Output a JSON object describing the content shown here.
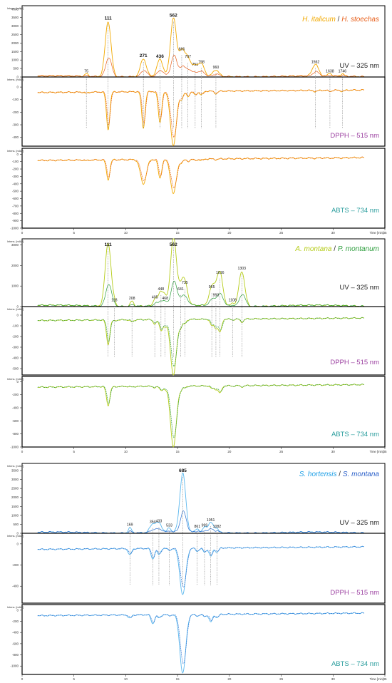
{
  "chart_data": [
    {
      "type": "line",
      "title_parts": [
        {
          "text": "H. italicum",
          "color": "#f2a900"
        },
        {
          "text": " / ",
          "color": "#333333"
        },
        {
          "text": "H. stoechas",
          "color": "#e8601c"
        }
      ],
      "series_colors": [
        "#f2a900",
        "#e8601c"
      ],
      "xlabel": "Time [min]",
      "xlim": [
        0,
        35
      ],
      "x_ticks": [
        "0",
        "5",
        "10",
        "15",
        "20",
        "25",
        "30",
        "35"
      ],
      "panels": [
        {
          "label": "UV – 325 nm",
          "label_color": "#222222",
          "unit": "Intens. [mAU]",
          "y_ticks": [
            "0",
            "500",
            "1000",
            "1500",
            "2000",
            "2500",
            "3000",
            "3500",
            "4000"
          ],
          "ylim": [
            0,
            4200
          ]
        },
        {
          "label": "DPPH – 515 nm",
          "label_color": "#9b3fa0",
          "unit": "Intens. [mAU]",
          "y_ticks": [
            "0",
            "-100",
            "-200",
            "-300",
            "-400"
          ],
          "ylim": [
            -470,
            80
          ]
        },
        {
          "label": "ABTS – 734 nm",
          "label_color": "#2a9d9d",
          "unit": "Intens. [mAU]",
          "y_ticks": [
            "0",
            "-100",
            "-200",
            "-300",
            "-400",
            "-500",
            "-600",
            "-700",
            "-800",
            "-900",
            "-1000"
          ],
          "ylim": [
            -1000,
            80
          ]
        }
      ],
      "peaks": [
        {
          "label": "75",
          "x": 6.2,
          "uv": 150,
          "dpph": -10,
          "abts": -10,
          "bold": false
        },
        {
          "label": "111",
          "x": 8.3,
          "uv": 3250,
          "dpph": -300,
          "abts": -270,
          "bold": true
        },
        {
          "label": "271",
          "x": 11.7,
          "uv": 1050,
          "dpph": -290,
          "abts": -330,
          "bold": true
        },
        {
          "label": "436",
          "x": 13.3,
          "uv": 1000,
          "dpph": -250,
          "abts": -260,
          "bold": true
        },
        {
          "label": "562",
          "x": 14.6,
          "uv": 3420,
          "dpph": -430,
          "abts": -460,
          "bold": true
        },
        {
          "label": "666",
          "x": 15.4,
          "uv": 1450,
          "dpph": -60,
          "abts": -40,
          "bold": false
        },
        {
          "label": "707",
          "x": 16.0,
          "uv": 1000,
          "dpph": -40,
          "abts": -30,
          "bold": false
        },
        {
          "label": "751",
          "x": 16.7,
          "uv": 550,
          "dpph": -30,
          "abts": -20,
          "bold": false
        },
        {
          "label": "798",
          "x": 17.3,
          "uv": 700,
          "dpph": -30,
          "abts": -20,
          "bold": false
        },
        {
          "label": "960",
          "x": 18.7,
          "uv": 380,
          "dpph": -20,
          "abts": -10,
          "bold": false
        },
        {
          "label": "1562",
          "x": 28.3,
          "uv": 700,
          "dpph": -10,
          "abts": -5,
          "bold": false
        },
        {
          "label": "1638",
          "x": 29.7,
          "uv": 150,
          "dpph": -10,
          "abts": -5,
          "bold": false
        },
        {
          "label": "1746",
          "x": 30.9,
          "uv": 150,
          "dpph": -10,
          "abts": -5,
          "bold": false
        }
      ]
    },
    {
      "type": "line",
      "title_parts": [
        {
          "text": "A. montana",
          "color": "#b5cc18"
        },
        {
          "text": " / ",
          "color": "#333333"
        },
        {
          "text": "P. montanum",
          "color": "#2e9e3e"
        }
      ],
      "series_colors": [
        "#b5cc18",
        "#2e9e3e"
      ],
      "xlabel": "Time [min]",
      "xlim": [
        0,
        35
      ],
      "x_ticks": [
        "0",
        "5",
        "10",
        "15",
        "20",
        "25",
        "30",
        "35"
      ],
      "panels": [
        {
          "label": "UV – 325 nm",
          "label_color": "#222222",
          "unit": "Intens. [mAU]",
          "y_ticks": [
            "0",
            "1000",
            "2000",
            "3000"
          ],
          "ylim": [
            0,
            3300
          ]
        },
        {
          "label": "DPPH – 515 nm",
          "label_color": "#9b3fa0",
          "unit": "Intens. [mAU]",
          "y_ticks": [
            "0",
            "-100",
            "-200",
            "-300",
            "-400",
            "-500"
          ],
          "ylim": [
            -560,
            80
          ]
        },
        {
          "label": "ABTS – 734 nm",
          "label_color": "#2a9d9d",
          "unit": "Intens. [mAU]",
          "y_ticks": [
            "0",
            "-200",
            "-400",
            "-600",
            "-800",
            "-1000"
          ],
          "ylim": [
            -1000,
            80
          ]
        }
      ],
      "peaks": [
        {
          "label": "111",
          "x": 8.3,
          "uv": 3100,
          "dpph": -230,
          "abts": -290,
          "bold": true
        },
        {
          "label": "118",
          "x": 8.9,
          "uv": 150,
          "dpph": -10,
          "abts": -5,
          "bold": false
        },
        {
          "label": "208",
          "x": 10.6,
          "uv": 250,
          "dpph": -20,
          "abts": -10,
          "bold": false
        },
        {
          "label": "405",
          "x": 12.8,
          "uv": 300,
          "dpph": -40,
          "abts": -20,
          "bold": false
        },
        {
          "label": "448",
          "x": 13.4,
          "uv": 700,
          "dpph": -100,
          "abts": -60,
          "bold": false
        },
        {
          "label": "468",
          "x": 13.8,
          "uv": 250,
          "dpph": -60,
          "abts": -40,
          "bold": false
        },
        {
          "label": "562",
          "x": 14.6,
          "uv": 3300,
          "dpph": -520,
          "abts": -930,
          "bold": true
        },
        {
          "label": "641",
          "x": 15.3,
          "uv": 700,
          "dpph": -60,
          "abts": -40,
          "bold": false
        },
        {
          "label": "735",
          "x": 15.7,
          "uv": 1000,
          "dpph": -40,
          "abts": -30,
          "bold": false
        },
        {
          "label": "965",
          "x": 18.3,
          "uv": 800,
          "dpph": -60,
          "abts": -40,
          "bold": false
        },
        {
          "label": "993",
          "x": 18.7,
          "uv": 400,
          "dpph": -80,
          "abts": -50,
          "bold": false
        },
        {
          "label": "1016",
          "x": 19.1,
          "uv": 1500,
          "dpph": -120,
          "abts": -110,
          "bold": false
        },
        {
          "label": "1108",
          "x": 20.3,
          "uv": 150,
          "dpph": -10,
          "abts": -10,
          "bold": false
        },
        {
          "label": "1303",
          "x": 21.2,
          "uv": 1700,
          "dpph": -30,
          "abts": -20,
          "bold": false
        }
      ]
    },
    {
      "type": "line",
      "title_parts": [
        {
          "text": "S. hortensis",
          "color": "#1e9fe6"
        },
        {
          "text": " / ",
          "color": "#333333"
        },
        {
          "text": "S. montana",
          "color": "#2a5fc9"
        }
      ],
      "series_colors": [
        "#5bb8ee",
        "#2a6fd0"
      ],
      "xlabel": "Time [min]",
      "xlim": [
        0,
        35
      ],
      "x_ticks": [
        "0",
        "5",
        "10",
        "15",
        "20",
        "25",
        "30",
        "35"
      ],
      "panels": [
        {
          "label": "UV – 325 nm",
          "label_color": "#222222",
          "unit": "Intens. [mAU]",
          "y_ticks": [
            "0",
            "500",
            "1000",
            "1500",
            "2000",
            "2500",
            "3000",
            "3500"
          ],
          "ylim": [
            0,
            3900
          ]
        },
        {
          "label": "DPPH – 515 nm",
          "label_color": "#9b3fa0",
          "unit": "Intens. [mAU]",
          "y_ticks": [
            "0",
            "-200",
            "-400"
          ],
          "ylim": [
            -560,
            100
          ]
        },
        {
          "label": "ABTS – 734 nm",
          "label_color": "#2a9d9d",
          "unit": "Intens. [mAU]",
          "y_ticks": [
            "0",
            "-200",
            "-400",
            "-600",
            "-800",
            "-1000"
          ],
          "ylim": [
            -1150,
            100
          ]
        }
      ],
      "peaks": [
        {
          "label": "169",
          "x": 10.4,
          "uv": 300,
          "dpph": -60,
          "abts": -60,
          "bold": false
        },
        {
          "label": "354",
          "x": 12.6,
          "uv": 450,
          "dpph": -100,
          "abts": -160,
          "bold": false
        },
        {
          "label": "433",
          "x": 13.2,
          "uv": 500,
          "dpph": -60,
          "abts": -60,
          "bold": false
        },
        {
          "label": "533",
          "x": 14.2,
          "uv": 250,
          "dpph": -20,
          "abts": -20,
          "bold": false
        },
        {
          "label": "685",
          "x": 15.5,
          "uv": 3300,
          "dpph": -440,
          "abts": -1050,
          "bold": true
        },
        {
          "label": "861",
          "x": 16.9,
          "uv": 200,
          "dpph": -30,
          "abts": -30,
          "bold": false
        },
        {
          "label": "999",
          "x": 17.6,
          "uv": 250,
          "dpph": -40,
          "abts": -40,
          "bold": false
        },
        {
          "label": "1051",
          "x": 18.2,
          "uv": 550,
          "dpph": -80,
          "abts": -140,
          "bold": false
        },
        {
          "label": "1082",
          "x": 18.8,
          "uv": 200,
          "dpph": -40,
          "abts": -60,
          "bold": false
        }
      ]
    }
  ]
}
